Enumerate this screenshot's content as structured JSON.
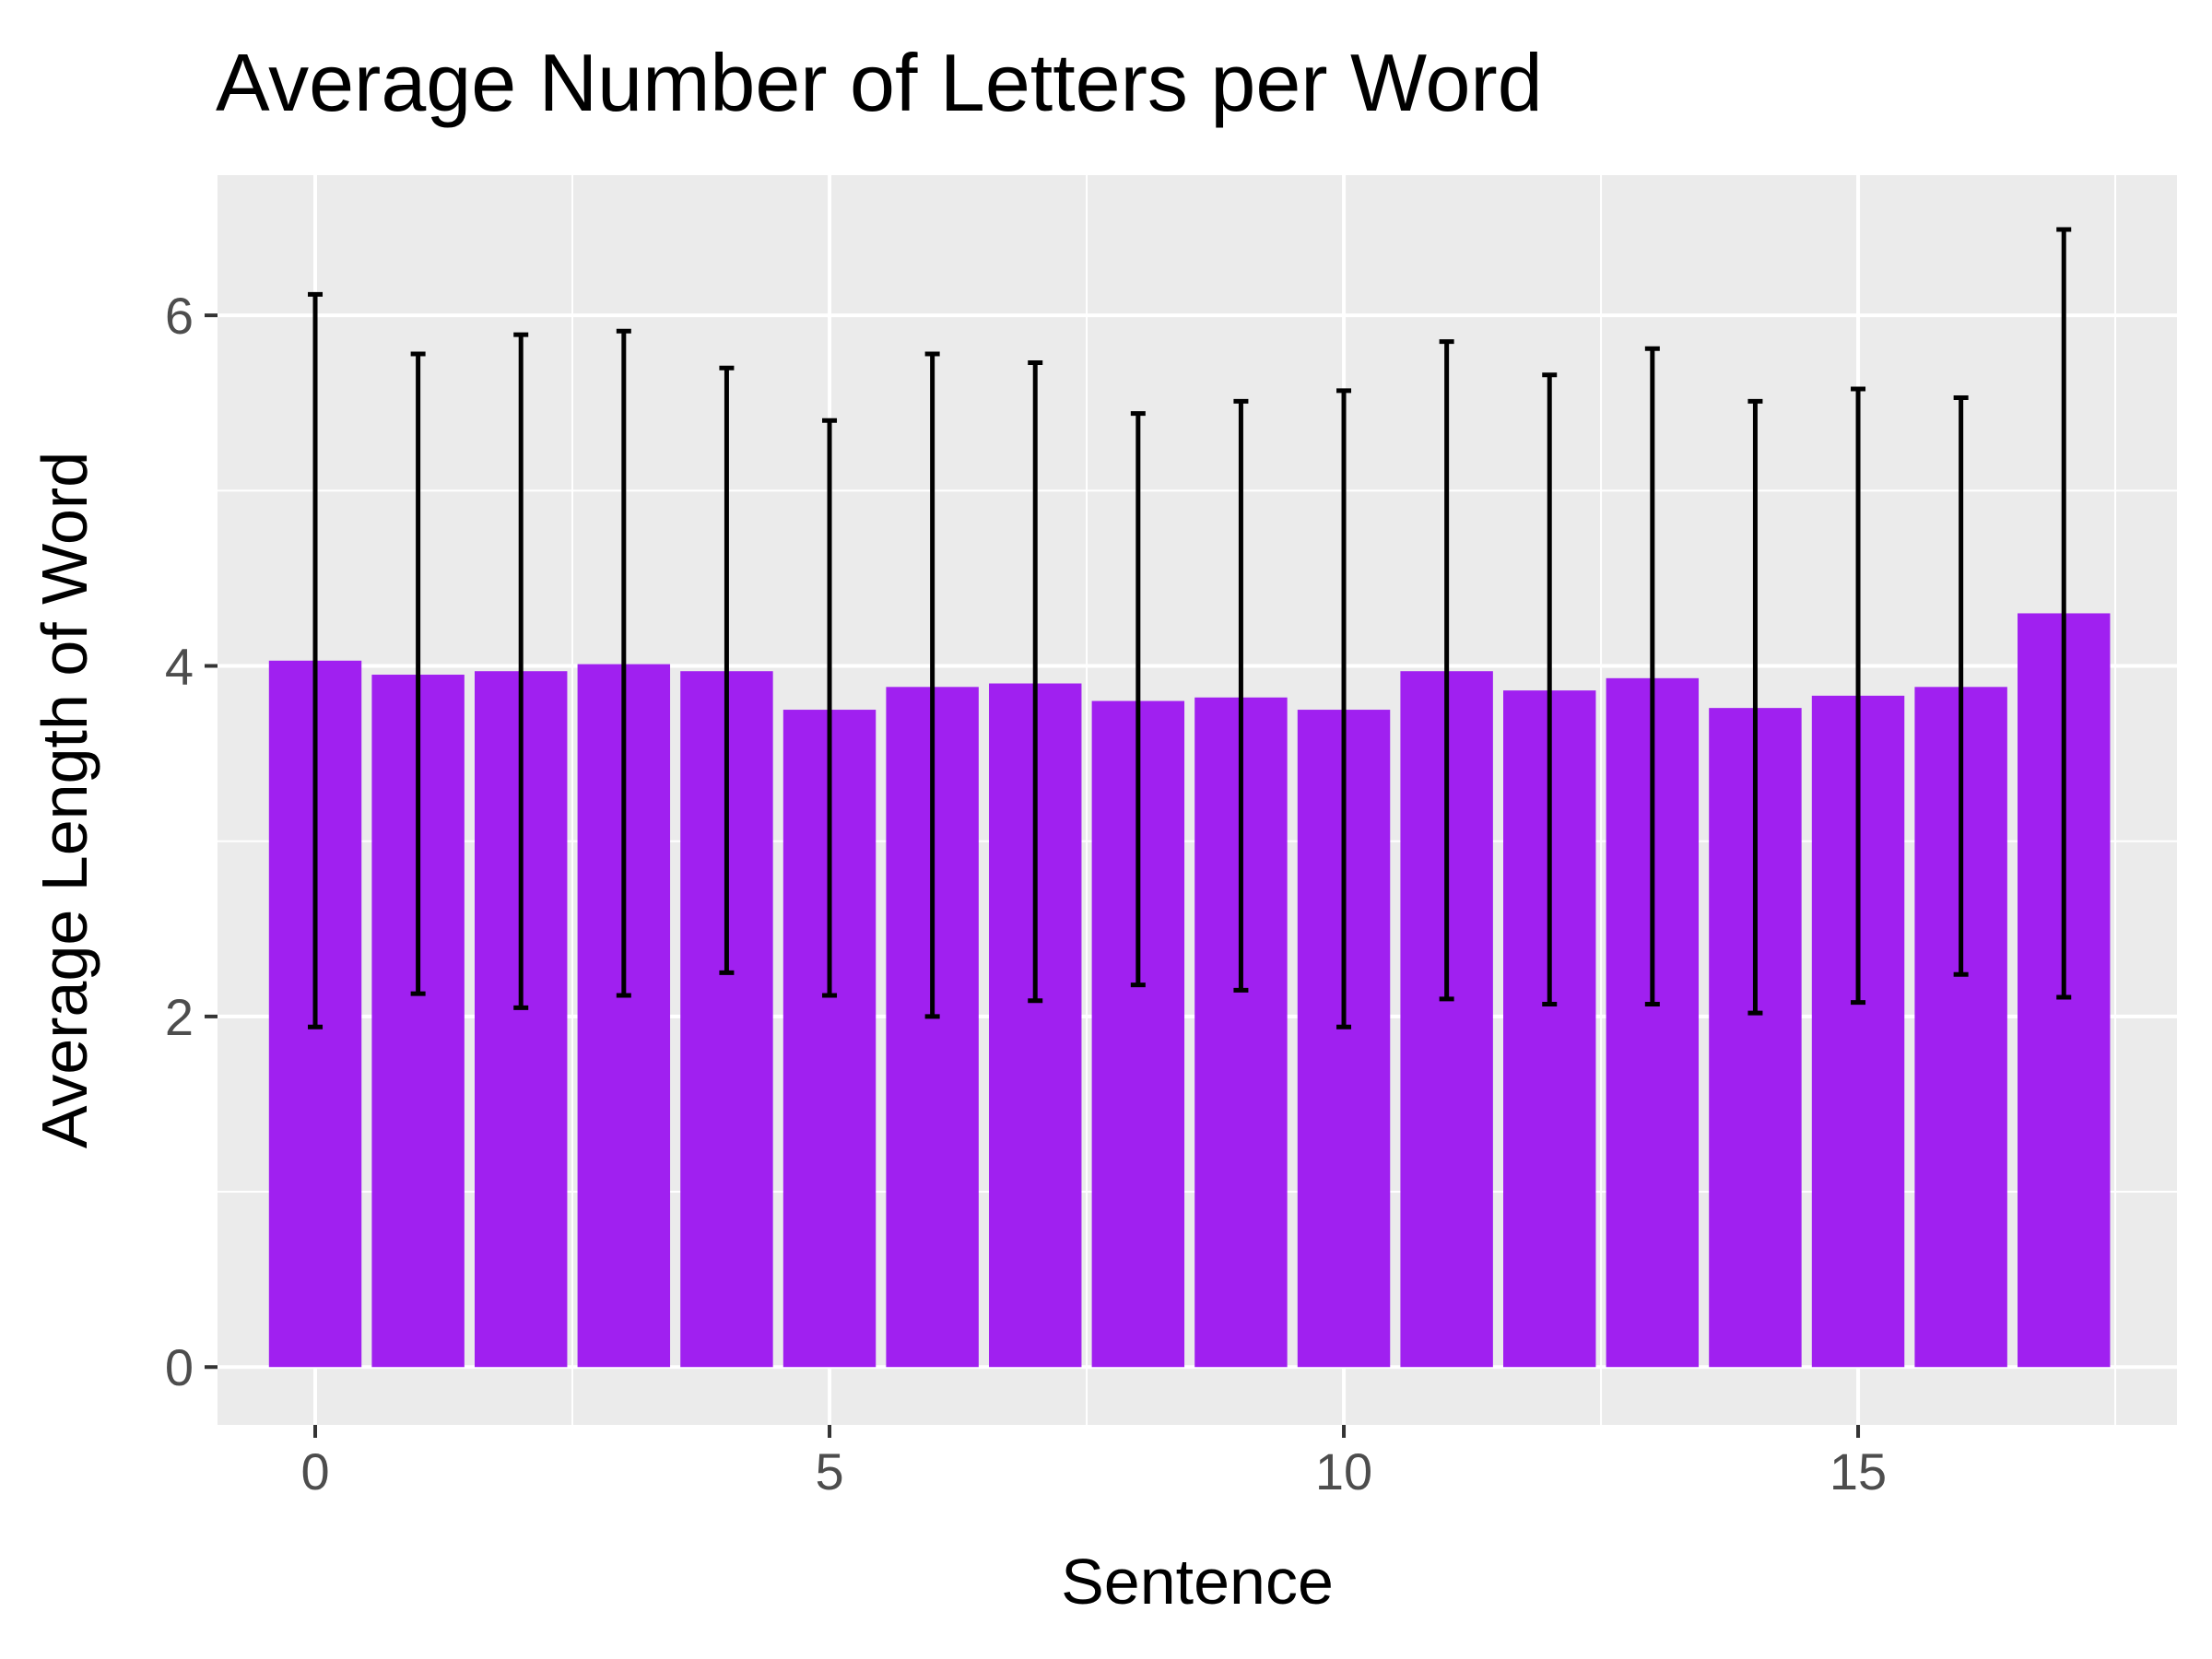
{
  "chart_data": {
    "type": "bar",
    "title": "Average Number of Letters per Word",
    "xlabel": "Sentence",
    "ylabel": "Average Length of Word",
    "x": [
      0,
      1,
      2,
      3,
      4,
      5,
      6,
      7,
      8,
      9,
      10,
      11,
      12,
      13,
      14,
      15,
      16,
      17
    ],
    "values": [
      4.03,
      3.95,
      3.97,
      4.01,
      3.97,
      3.75,
      3.88,
      3.9,
      3.8,
      3.82,
      3.75,
      3.97,
      3.86,
      3.93,
      3.76,
      3.83,
      3.88,
      4.3
    ],
    "error_upper": [
      6.12,
      5.78,
      5.89,
      5.91,
      5.7,
      5.4,
      5.78,
      5.73,
      5.44,
      5.51,
      5.57,
      5.85,
      5.66,
      5.81,
      5.51,
      5.58,
      5.53,
      6.49
    ],
    "error_lower": [
      1.94,
      2.13,
      2.05,
      2.12,
      2.25,
      2.12,
      2.0,
      2.09,
      2.18,
      2.15,
      1.94,
      2.1,
      2.07,
      2.07,
      2.02,
      2.08,
      2.24,
      2.11
    ],
    "xticks": [
      0,
      5,
      10,
      15
    ],
    "yticks": [
      0,
      2,
      4,
      6
    ],
    "xlim": [
      -0.95,
      18.1
    ],
    "ylim": [
      -0.33,
      6.8
    ],
    "grid": true,
    "bar_color": "#a020f0",
    "error_bar_color": "#000000",
    "panel_background": "#ebebeb",
    "gridline_color": "#ffffff"
  }
}
